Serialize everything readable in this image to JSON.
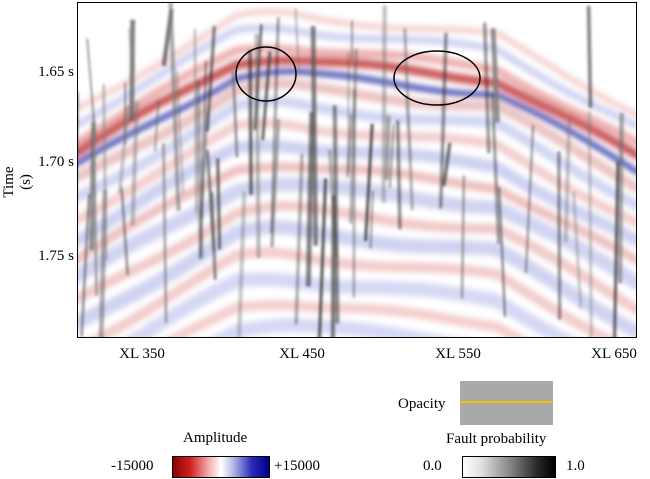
{
  "panel": {
    "y_axis_label": "Time (s)",
    "y_ticks": [
      "1.65 s",
      "1.70 s",
      "1.75 s"
    ],
    "x_ticks": [
      "XL 350",
      "XL 450",
      "XL 550",
      "XL 650"
    ],
    "highlight_ellipses": 2
  },
  "opacity_control": {
    "label": "Opacity",
    "swatch_color": "#a9a9a9",
    "line_color": "#f2c200"
  },
  "amplitude_colorbar": {
    "title": "Amplitude",
    "min_label": "-15000",
    "max_label": "+15000",
    "colors": [
      "#8b0000",
      "#ffffff",
      "#00008b"
    ]
  },
  "fault_colorbar": {
    "title": "Fault probability",
    "min_label": "0.0",
    "max_label": "1.0",
    "colors": [
      "#ffffff",
      "#000000"
    ]
  }
}
